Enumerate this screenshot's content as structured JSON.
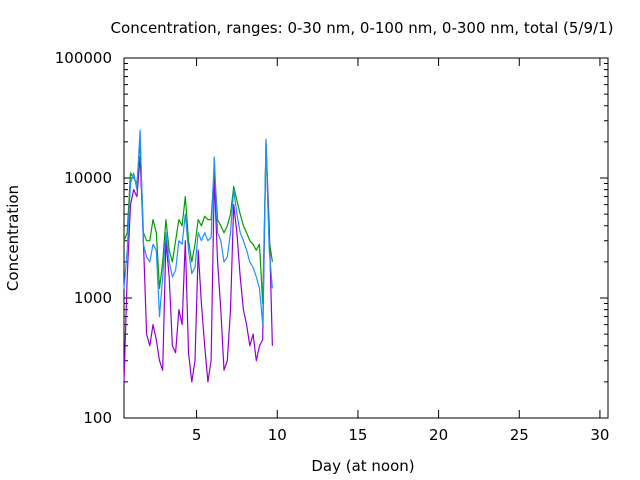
{
  "chart_data": {
    "type": "line",
    "title": "Concentration, ranges: 0-30 nm, 0-100 nm, 0-300 nm, total (5/9/1)",
    "xlabel": "Day (at noon)",
    "ylabel": "Concentration",
    "xlim": [
      0.5,
      30.5
    ],
    "ylim": [
      100,
      100000
    ],
    "yscale": "log",
    "x_ticks": [
      5,
      10,
      15,
      20,
      25,
      30
    ],
    "x_tick_labels": [
      "5",
      "10",
      "15",
      "20",
      "25",
      "30"
    ],
    "y_ticks": [
      100,
      1000,
      10000,
      100000
    ],
    "y_tick_labels": [
      "100",
      "1000",
      "10000",
      "100000"
    ],
    "grid": false,
    "legend": "none",
    "series": [
      {
        "color": "#9400d3",
        "x": [
          0.5,
          0.7,
          0.9,
          1.1,
          1.3,
          1.5,
          1.7,
          1.9,
          2.1,
          2.3,
          2.5,
          2.7,
          2.9,
          3.1,
          3.3,
          3.5,
          3.7,
          3.9,
          4.1,
          4.3,
          4.5,
          4.7,
          4.9,
          5.1,
          5.3,
          5.5,
          5.7,
          5.9,
          6.1,
          6.3,
          6.5,
          6.7,
          6.9,
          7.1,
          7.3,
          7.5,
          7.7,
          7.9,
          8.1,
          8.3,
          8.5,
          8.7,
          8.9,
          9.1,
          9.3,
          9.5,
          9.7
        ],
        "values": [
          200,
          1500,
          6000,
          8000,
          7000,
          15000,
          3000,
          500,
          400,
          600,
          450,
          300,
          250,
          3000,
          1500,
          400,
          350,
          800,
          600,
          3000,
          350,
          200,
          300,
          2500,
          900,
          400,
          200,
          300,
          10000,
          2000,
          800,
          250,
          300,
          800,
          6000,
          3500,
          1500,
          800,
          600,
          400,
          500,
          300,
          400,
          450,
          20000,
          4000,
          400
        ]
      },
      {
        "color": "#009e00",
        "x": [
          0.5,
          0.7,
          0.9,
          1.1,
          1.3,
          1.5,
          1.7,
          1.9,
          2.1,
          2.3,
          2.5,
          2.7,
          2.9,
          3.1,
          3.3,
          3.5,
          3.7,
          3.9,
          4.1,
          4.3,
          4.5,
          4.7,
          4.9,
          5.1,
          5.3,
          5.5,
          5.7,
          5.9,
          6.1,
          6.3,
          6.5,
          6.7,
          6.9,
          7.1,
          7.3,
          7.5,
          7.7,
          7.9,
          8.1,
          8.3,
          8.5,
          8.7,
          8.9,
          9.1,
          9.3,
          9.5,
          9.7
        ],
        "values": [
          3000,
          3500,
          11000,
          10000,
          9000,
          20000,
          3500,
          3000,
          3000,
          4500,
          3500,
          1200,
          2000,
          4500,
          2500,
          2000,
          3000,
          4500,
          4000,
          7000,
          3000,
          2000,
          2800,
          4500,
          4000,
          4800,
          4500,
          4500,
          12000,
          4500,
          4000,
          3500,
          4000,
          5000,
          8500,
          6500,
          5000,
          4000,
          3500,
          3000,
          2800,
          2500,
          2800,
          900,
          18000,
          3000,
          2000
        ]
      },
      {
        "color": "#1e90ff",
        "x": [
          0.5,
          0.7,
          0.9,
          1.1,
          1.3,
          1.5,
          1.7,
          1.9,
          2.1,
          2.3,
          2.5,
          2.7,
          2.9,
          3.1,
          3.3,
          3.5,
          3.7,
          3.9,
          4.1,
          4.3,
          4.5,
          4.7,
          4.9,
          5.1,
          5.3,
          5.5,
          5.7,
          5.9,
          6.1,
          6.3,
          6.5,
          6.7,
          6.9,
          7.1,
          7.3,
          7.5,
          7.7,
          7.9,
          8.1,
          8.3,
          8.5,
          8.7,
          8.9,
          9.1,
          9.3,
          9.5,
          9.7
        ],
        "values": [
          1200,
          2500,
          9000,
          11000,
          8000,
          25000,
          2800,
          2200,
          2000,
          2800,
          2500,
          700,
          1500,
          3500,
          2000,
          1500,
          1700,
          3000,
          2800,
          5000,
          2500,
          1600,
          1800,
          3500,
          3000,
          3500,
          3000,
          3200,
          15000,
          3500,
          3000,
          2000,
          2200,
          3500,
          8000,
          5000,
          3500,
          3000,
          2500,
          2000,
          1800,
          1500,
          1200,
          600,
          21000,
          2500,
          1200
        ]
      }
    ]
  }
}
